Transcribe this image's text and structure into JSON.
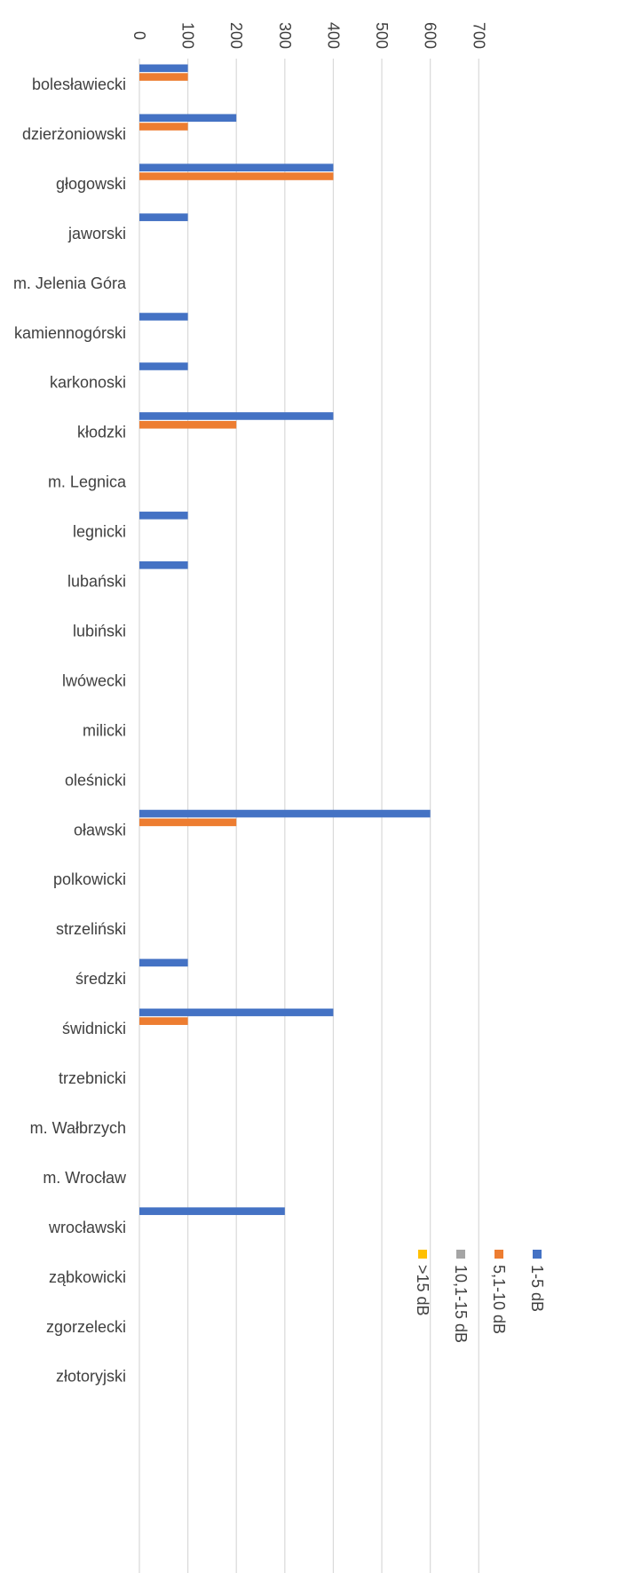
{
  "chart_data": {
    "type": "bar",
    "orientation": "horizontal",
    "title": "",
    "xlabel": "",
    "ylabel": "",
    "xlim": [
      0,
      700
    ],
    "ticks": [
      0,
      100,
      200,
      300,
      400,
      500,
      600,
      700
    ],
    "grid": true,
    "legend_position": "bottom-right",
    "categories": [
      "bolesławiecki",
      "dzierżoniowski",
      "głogowski",
      "jaworski",
      "m. Jelenia Góra",
      "kamiennogórski",
      "karkonoski",
      "kłodzki",
      "m. Legnica",
      "legnicki",
      "lubański",
      "lubiński",
      "lwówecki",
      "milicki",
      "oleśnicki",
      "oławski",
      "polkowicki",
      "strzeliński",
      "średzki",
      "świdnicki",
      "trzebnicki",
      "m. Wałbrzych",
      "m. Wrocław",
      "wrocławski",
      "ząbkowicki",
      "zgorzelecki",
      "złotoryjski"
    ],
    "series": [
      {
        "name": "1-5 dB",
        "color": "#4472c4",
        "values": [
          100,
          200,
          400,
          100,
          0,
          100,
          100,
          400,
          0,
          100,
          100,
          0,
          0,
          0,
          0,
          600,
          0,
          0,
          100,
          400,
          0,
          0,
          0,
          300,
          0,
          0,
          0
        ]
      },
      {
        "name": "5,1-10 dB",
        "color": "#ed7d31",
        "values": [
          100,
          100,
          400,
          0,
          0,
          0,
          0,
          200,
          0,
          0,
          0,
          0,
          0,
          0,
          0,
          200,
          0,
          0,
          0,
          100,
          0,
          0,
          0,
          0,
          0,
          0,
          0
        ]
      },
      {
        "name": "10,1-15 dB",
        "color": "#a5a5a5",
        "values": [
          0,
          0,
          0,
          0,
          0,
          0,
          0,
          0,
          0,
          0,
          0,
          0,
          0,
          0,
          0,
          0,
          0,
          0,
          0,
          0,
          0,
          0,
          0,
          0,
          0,
          0,
          0
        ]
      },
      {
        "name": ">15 dB",
        "color": "#ffc000",
        "values": [
          0,
          0,
          0,
          0,
          0,
          0,
          0,
          0,
          0,
          0,
          0,
          0,
          0,
          0,
          0,
          0,
          0,
          0,
          0,
          0,
          0,
          0,
          0,
          0,
          0,
          0,
          0
        ]
      }
    ]
  }
}
